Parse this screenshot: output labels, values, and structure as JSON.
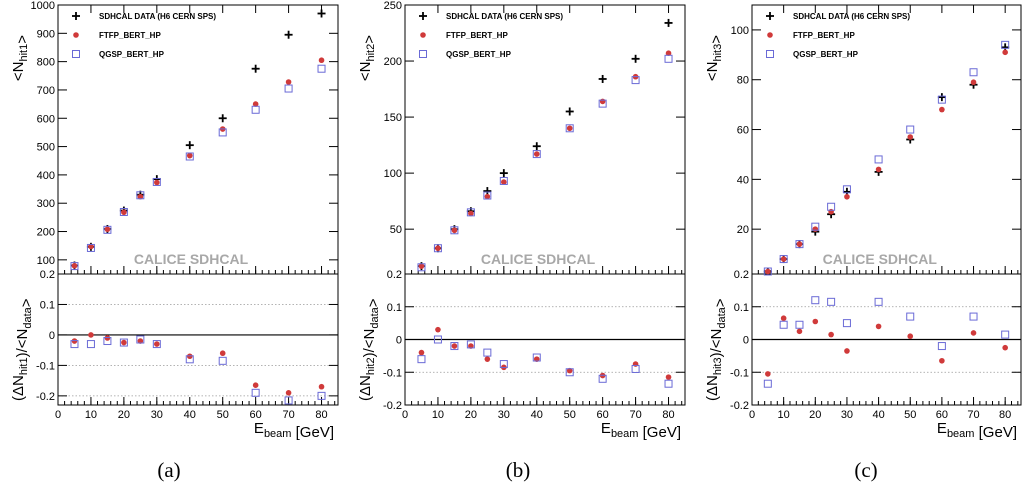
{
  "figure": {
    "captions": [
      "(a)",
      "(b)",
      "(c)"
    ],
    "colors": {
      "data": "#000000",
      "ftfp": "#d03a3a",
      "qgsp": "#6a6ad6",
      "grid": "#9a9a9a",
      "watermark": "#a8a8a8"
    }
  },
  "chart_data": [
    {
      "type": "scatter",
      "watermark": "CALICE SDHCAL",
      "xlabel": "E_beam [GeV]",
      "ylabel_top": "<N_hit1>",
      "ylabel_bottom": "(ΔN_hit1)/<N_data>",
      "xlim": [
        0,
        85
      ],
      "ylim_top": [
        50,
        1000
      ],
      "ylim_bottom": [
        -0.23,
        0.2
      ],
      "xticks": [
        0,
        10,
        20,
        30,
        40,
        50,
        60,
        70,
        80
      ],
      "yticks_top": [
        100,
        200,
        300,
        400,
        500,
        600,
        700,
        800,
        900,
        1000
      ],
      "yticks_bottom": [
        -0.2,
        -0.1,
        0,
        0.1,
        0.2
      ],
      "x": [
        5,
        10,
        15,
        20,
        25,
        30,
        40,
        50,
        60,
        70,
        80
      ],
      "series": [
        {
          "name": "SDHCAL DATA (H6 CERN SPS)",
          "marker": "cross",
          "values": [
            80,
            146,
            209,
            274,
            330,
            385,
            505,
            600,
            775,
            895,
            970
          ]
        },
        {
          "name": "FTFP_BERT_HP",
          "marker": "circle",
          "values": [
            79,
            147,
            208,
            268,
            323,
            373,
            468,
            562,
            650,
            728,
            805
          ],
          "ratio": [
            -0.02,
            0.0,
            -0.01,
            -0.025,
            -0.02,
            -0.03,
            -0.07,
            -0.06,
            -0.165,
            -0.19,
            -0.17
          ]
        },
        {
          "name": "QGSP_BERT_HP",
          "marker": "square",
          "values": [
            78,
            142,
            206,
            269,
            328,
            375,
            465,
            550,
            630,
            705,
            775
          ],
          "ratio": [
            -0.03,
            -0.03,
            -0.02,
            -0.025,
            -0.015,
            -0.03,
            -0.08,
            -0.085,
            -0.19,
            -0.215,
            -0.2
          ]
        }
      ]
    },
    {
      "type": "scatter",
      "watermark": "CALICE SDHCAL",
      "xlabel": "E_beam [GeV]",
      "ylabel_top": "<N_hit2>",
      "ylabel_bottom": "(ΔN_hit2)/<N_data>",
      "xlim": [
        0,
        85
      ],
      "ylim_top": [
        10,
        250
      ],
      "ylim_bottom": [
        -0.2,
        0.2
      ],
      "xticks": [
        0,
        10,
        20,
        30,
        40,
        50,
        60,
        70,
        80
      ],
      "yticks_top": [
        50,
        100,
        150,
        200,
        250
      ],
      "yticks_bottom": [
        -0.2,
        -0.1,
        0,
        0.1,
        0.2
      ],
      "x": [
        5,
        10,
        15,
        20,
        25,
        30,
        40,
        50,
        60,
        70,
        80
      ],
      "series": [
        {
          "name": "SDHCAL DATA (H6 CERN SPS)",
          "marker": "cross",
          "values": [
            17,
            33,
            50,
            66,
            84,
            100,
            124,
            155,
            184,
            202,
            234
          ]
        },
        {
          "name": "FTFP_BERT_HP",
          "marker": "circle",
          "values": [
            17,
            33,
            49,
            64,
            79,
            92,
            117,
            140,
            164,
            186,
            207
          ],
          "ratio": [
            -0.04,
            0.03,
            -0.02,
            -0.02,
            -0.06,
            -0.085,
            -0.06,
            -0.095,
            -0.11,
            -0.075,
            -0.115
          ]
        },
        {
          "name": "QGSP_BERT_HP",
          "marker": "square",
          "values": [
            16,
            33,
            49,
            65,
            80,
            93,
            117,
            140,
            162,
            183,
            202
          ],
          "ratio": [
            -0.06,
            0.0,
            -0.02,
            -0.015,
            -0.04,
            -0.075,
            -0.055,
            -0.1,
            -0.12,
            -0.09,
            -0.135
          ]
        }
      ]
    },
    {
      "type": "scatter",
      "watermark": "CALICE SDHCAL",
      "xlabel": "E_beam [GeV]",
      "ylabel_top": "<N_hit3>",
      "ylabel_bottom": "(ΔN_hit3)/<N_data>",
      "xlim": [
        0,
        85
      ],
      "ylim_top": [
        2,
        110
      ],
      "ylim_bottom": [
        -0.2,
        0.2
      ],
      "xticks": [
        0,
        10,
        20,
        30,
        40,
        50,
        60,
        70,
        80
      ],
      "yticks_top": [
        20,
        40,
        60,
        80,
        100
      ],
      "yticks_bottom": [
        -0.2,
        -0.1,
        0,
        0.1,
        0.2
      ],
      "x": [
        5,
        10,
        15,
        20,
        25,
        30,
        40,
        50,
        60,
        70,
        80
      ],
      "series": [
        {
          "name": "SDHCAL DATA (H6 CERN SPS)",
          "marker": "cross",
          "values": [
            3,
            8,
            14,
            19,
            26,
            35,
            43,
            56,
            73,
            78,
            93
          ]
        },
        {
          "name": "FTFP_BERT_HP",
          "marker": "circle",
          "values": [
            3,
            8,
            14,
            20,
            27,
            33,
            44,
            57,
            68,
            79,
            91
          ],
          "ratio": [
            -0.105,
            0.065,
            0.025,
            0.055,
            0.015,
            -0.035,
            0.04,
            0.01,
            -0.065,
            0.02,
            -0.025
          ]
        },
        {
          "name": "QGSP_BERT_HP",
          "marker": "square",
          "values": [
            3,
            8,
            14,
            21,
            29,
            36,
            48,
            60,
            72,
            83,
            94
          ],
          "ratio": [
            -0.135,
            0.045,
            0.045,
            0.12,
            0.115,
            0.05,
            0.115,
            0.07,
            -0.02,
            0.07,
            0.015
          ]
        }
      ]
    }
  ]
}
